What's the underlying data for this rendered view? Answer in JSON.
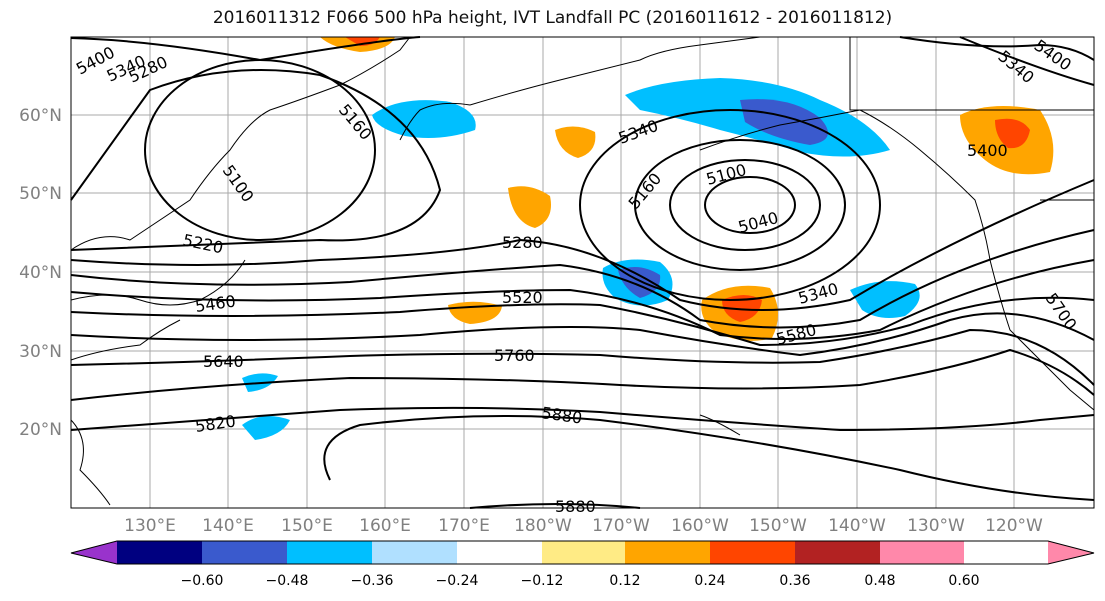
{
  "title": "2016011312 F066 500 hPa height, IVT Landfall PC (2016011612 - 2016011812)",
  "map": {
    "lon_labels": [
      "130°E",
      "140°E",
      "150°E",
      "160°E",
      "170°E",
      "180°W",
      "170°W",
      "160°W",
      "150°W",
      "140°W",
      "130°W",
      "120°W"
    ],
    "lat_labels": [
      "60°N",
      "50°N",
      "40°N",
      "30°N",
      "20°N"
    ],
    "contour_labels": [
      "5400",
      "5340",
      "5280",
      "5160",
      "5100",
      "5220",
      "5460",
      "5640",
      "5820",
      "5280",
      "5520",
      "5760",
      "5880",
      "5880",
      "5340",
      "5160",
      "5100",
      "5040",
      "5340",
      "5580",
      "5700",
      "5400",
      "5340",
      "5400"
    ]
  },
  "colorbar": {
    "colors": [
      "#9933cc",
      "#000080",
      "#3a5acd",
      "#00bfff",
      "#b0e0ff",
      "#ffffff",
      "#ffeb85",
      "#ffa500",
      "#ff4500",
      "#b22222",
      "#ff88aa"
    ],
    "ticks": [
      "−0.60",
      "−0.48",
      "−0.36",
      "−0.24",
      "−0.12",
      "0.12",
      "0.24",
      "0.36",
      "0.48",
      "0.60"
    ]
  }
}
